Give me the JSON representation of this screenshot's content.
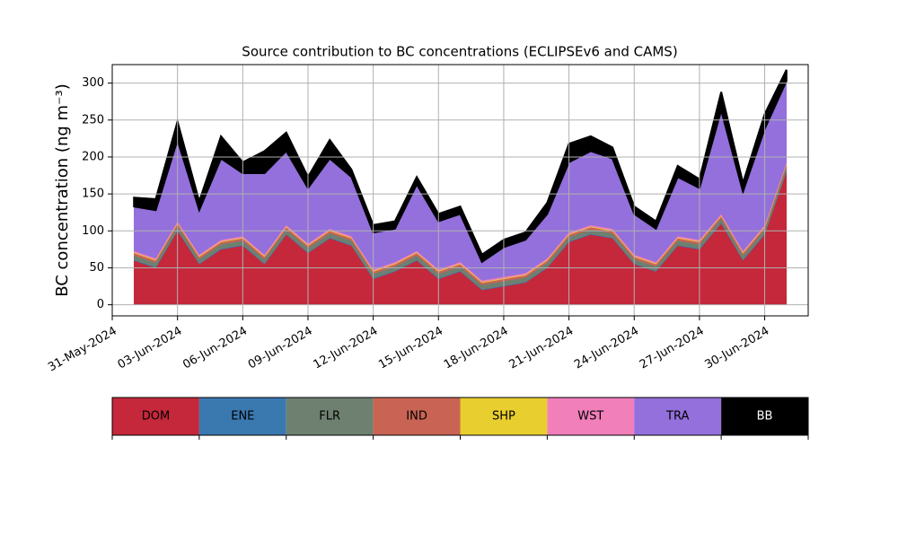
{
  "chart_data": {
    "type": "stacked-area",
    "title": "Source contribution to BC concentrations (ECLIPSEv6 and CAMS)",
    "y_label": "BC concentration (ng m⁻³)",
    "x": [
      "01-Jun-2024",
      "02-Jun-2024",
      "03-Jun-2024",
      "04-Jun-2024",
      "05-Jun-2024",
      "06-Jun-2024",
      "07-Jun-2024",
      "08-Jun-2024",
      "09-Jun-2024",
      "10-Jun-2024",
      "11-Jun-2024",
      "12-Jun-2024",
      "13-Jun-2024",
      "14-Jun-2024",
      "15-Jun-2024",
      "16-Jun-2024",
      "17-Jun-2024",
      "18-Jun-2024",
      "19-Jun-2024",
      "20-Jun-2024",
      "21-Jun-2024",
      "22-Jun-2024",
      "23-Jun-2024",
      "24-Jun-2024",
      "25-Jun-2024",
      "26-Jun-2024",
      "27-Jun-2024",
      "28-Jun-2024",
      "29-Jun-2024",
      "30-Jun-2024",
      "01-Jul-2024"
    ],
    "series": [
      {
        "name": "DOM",
        "color": "#c4283a",
        "values": [
          60,
          50,
          100,
          55,
          75,
          80,
          55,
          95,
          70,
          90,
          80,
          35,
          45,
          60,
          35,
          45,
          20,
          25,
          30,
          50,
          85,
          95,
          90,
          55,
          45,
          80,
          75,
          110,
          60,
          95,
          180
        ]
      },
      {
        "name": "ENE",
        "color": "#3a78b0",
        "values": [
          1,
          1,
          1,
          1,
          1,
          1,
          1,
          1,
          1,
          1,
          1,
          1,
          1,
          1,
          1,
          1,
          1,
          1,
          1,
          1,
          1,
          1,
          1,
          1,
          1,
          1,
          1,
          1,
          1,
          1,
          1
        ]
      },
      {
        "name": "FLR",
        "color": "#6e8070",
        "values": [
          6,
          6,
          6,
          6,
          6,
          6,
          6,
          6,
          6,
          6,
          6,
          6,
          6,
          6,
          6,
          6,
          6,
          6,
          6,
          6,
          6,
          6,
          6,
          6,
          6,
          6,
          6,
          6,
          6,
          6,
          6
        ]
      },
      {
        "name": "IND",
        "color": "#c96454",
        "values": [
          3,
          3,
          3,
          3,
          3,
          3,
          3,
          3,
          3,
          3,
          3,
          3,
          3,
          3,
          3,
          3,
          3,
          3,
          3,
          3,
          3,
          3,
          3,
          3,
          3,
          3,
          3,
          3,
          3,
          3,
          3
        ]
      },
      {
        "name": "SHP",
        "color": "#e8ce2e",
        "values": [
          1,
          1,
          1,
          1,
          1,
          1,
          1,
          1,
          1,
          1,
          1,
          1,
          1,
          1,
          1,
          1,
          1,
          1,
          1,
          1,
          1,
          1,
          1,
          1,
          1,
          1,
          1,
          1,
          1,
          1,
          1
        ]
      },
      {
        "name": "WST",
        "color": "#f07fba",
        "values": [
          2,
          2,
          2,
          2,
          2,
          2,
          2,
          2,
          2,
          2,
          2,
          2,
          2,
          2,
          2,
          2,
          2,
          2,
          2,
          2,
          2,
          2,
          2,
          2,
          2,
          2,
          2,
          2,
          2,
          2,
          2
        ]
      },
      {
        "name": "TRA",
        "color": "#9370db",
        "values": [
          60,
          65,
          110,
          60,
          110,
          85,
          110,
          100,
          75,
          95,
          80,
          50,
          45,
          90,
          65,
          65,
          25,
          40,
          45,
          60,
          95,
          100,
          95,
          55,
          45,
          80,
          70,
          140,
          80,
          130,
          110
        ]
      },
      {
        "name": "BB",
        "color": "#000000",
        "values": [
          12,
          15,
          25,
          12,
          30,
          15,
          30,
          25,
          15,
          25,
          10,
          10,
          10,
          10,
          10,
          10,
          10,
          10,
          10,
          15,
          25,
          20,
          15,
          10,
          10,
          15,
          12,
          25,
          12,
          20,
          15
        ]
      }
    ],
    "xlim": [
      "31-May-2024",
      "02-Jul-2024"
    ],
    "xticks": [
      "31-May-2024",
      "03-Jun-2024",
      "06-Jun-2024",
      "09-Jun-2024",
      "12-Jun-2024",
      "15-Jun-2024",
      "18-Jun-2024",
      "21-Jun-2024",
      "24-Jun-2024",
      "27-Jun-2024",
      "30-Jun-2024"
    ],
    "ylim": [
      -15,
      325
    ],
    "yticks": [
      0,
      50,
      100,
      150,
      200,
      250,
      300
    ],
    "grid": true
  }
}
